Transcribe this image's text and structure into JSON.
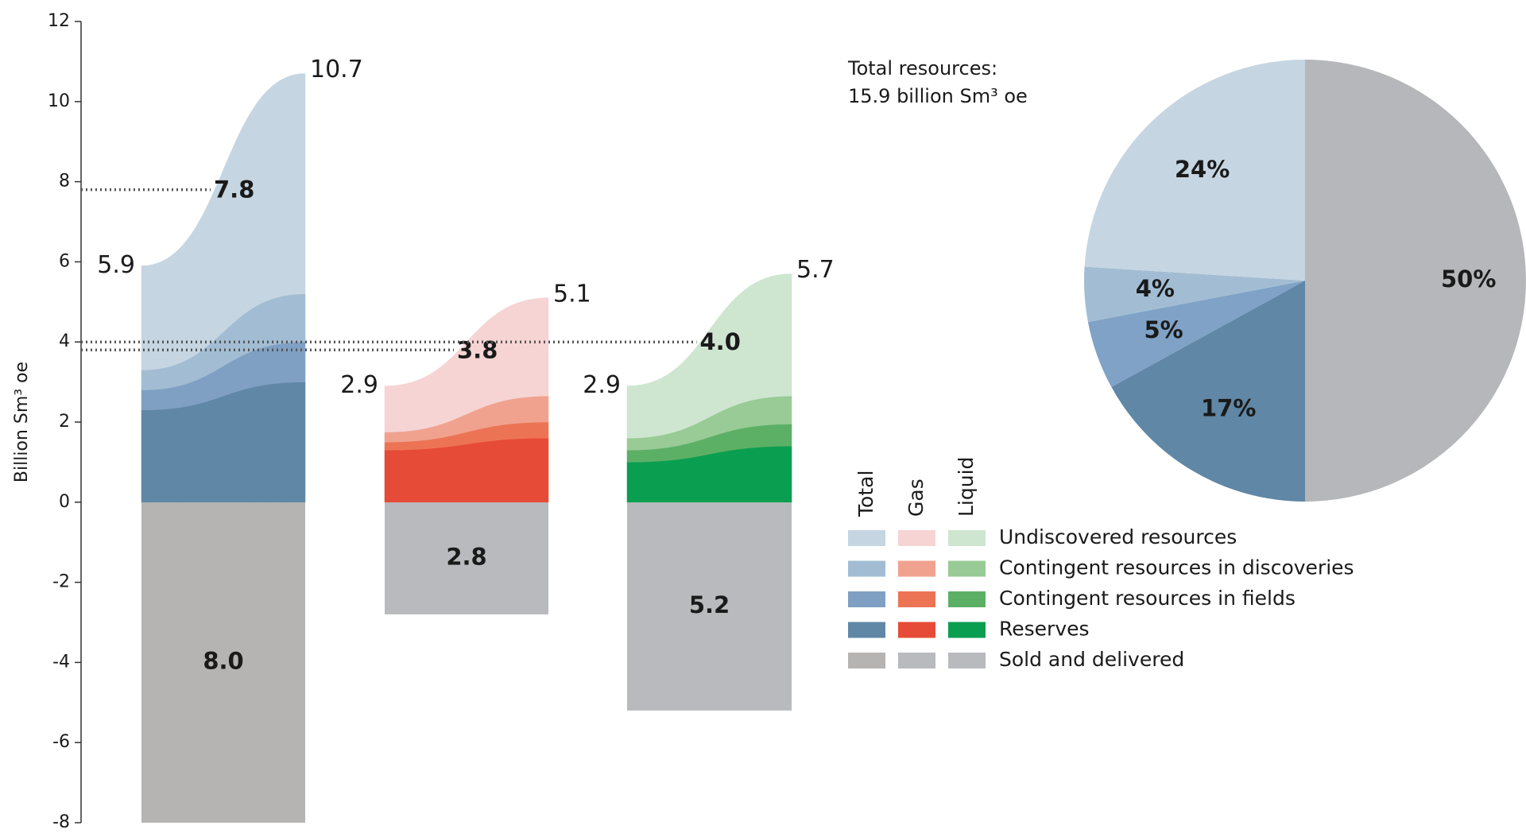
{
  "chart_data": [
    {
      "type": "fan_bar",
      "ylabel": "Billion Sm³ oe",
      "ylim": [
        -8,
        12
      ],
      "yticks": [
        -8,
        -6,
        -4,
        -2,
        0,
        2,
        4,
        6,
        8,
        10,
        12
      ],
      "groups": [
        "Total",
        "Gas",
        "Liquid"
      ],
      "series": [
        {
          "name": "Reserves",
          "colors": [
            "#6087a5",
            "#e64b37",
            "#0a9e50"
          ],
          "values": [
            [
              2.3,
              3.0
            ],
            [
              1.3,
              1.6
            ],
            [
              1.0,
              1.4
            ]
          ]
        },
        {
          "name": "Contingent resources in fields",
          "colors": [
            "#7fa0c3",
            "#ec7455",
            "#5cb066"
          ],
          "values": [
            [
              0.5,
              1.0
            ],
            [
              0.2,
              0.4
            ],
            [
              0.3,
              0.55
            ]
          ]
        },
        {
          "name": "Contingent resources in discoveries",
          "colors": [
            "#a2bdd3",
            "#f0a28e",
            "#98cb95"
          ],
          "values": [
            [
              0.5,
              1.2
            ],
            [
              0.25,
              0.65
            ],
            [
              0.3,
              0.7
            ]
          ]
        },
        {
          "name": "Undiscovered resources",
          "colors": [
            "#c5d5e2",
            "#f6d4d4",
            "#cee6d0"
          ],
          "values": [
            [
              2.6,
              5.5
            ],
            [
              1.15,
              2.45
            ],
            [
              1.3,
              3.05
            ]
          ]
        }
      ],
      "sold": {
        "name": "Sold and delivered",
        "colors": [
          "#b5b4b2",
          "#b9babe",
          "#b9babe"
        ],
        "values": [
          -8.0,
          -2.8,
          -5.2
        ],
        "value_labels": [
          "8.0",
          "2.8",
          "5.2"
        ]
      },
      "start_totals": [
        5.9,
        2.9,
        2.9
      ],
      "end_totals": [
        10.7,
        5.1,
        5.7
      ],
      "expected": [
        7.8,
        3.8,
        4.0
      ],
      "expected_labels": [
        "7.8",
        "3.8",
        "4.0"
      ]
    },
    {
      "type": "pie",
      "title": "Total resources:",
      "subtitle": "15.9 billion Sm³ oe",
      "values": [
        50,
        17,
        5,
        4,
        24
      ],
      "value_labels": [
        "50%",
        "17%",
        "5%",
        "4%",
        "24%"
      ],
      "colors": [
        "#b6b7ba",
        "#6087a5",
        "#7fa2c6",
        "#a2bdd3",
        "#c5d5e2"
      ]
    }
  ]
}
